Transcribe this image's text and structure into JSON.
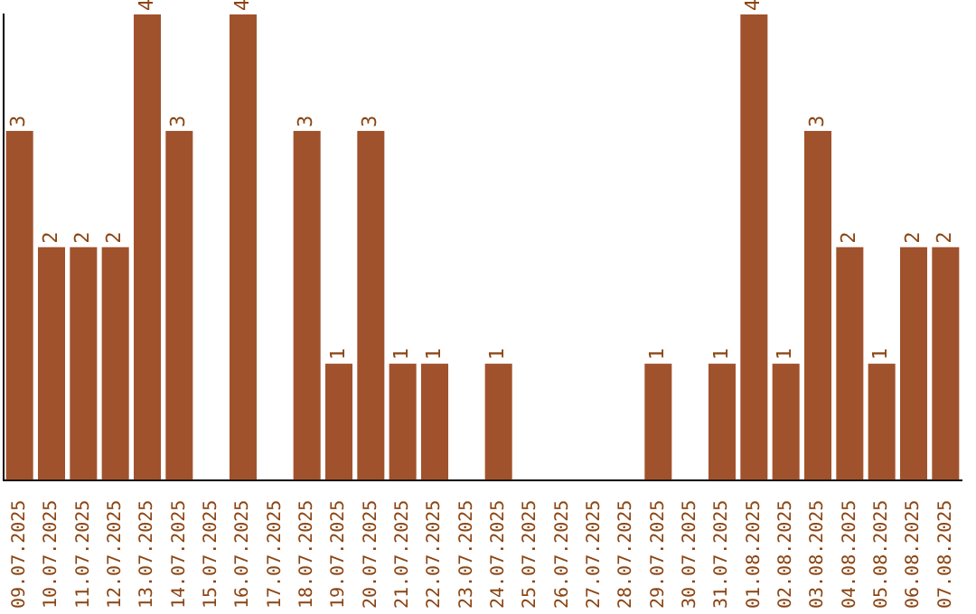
{
  "chart_data": {
    "type": "bar",
    "categories": [
      "09.07.2025",
      "10.07.2025",
      "11.07.2025",
      "12.07.2025",
      "13.07.2025",
      "14.07.2025",
      "15.07.2025",
      "16.07.2025",
      "17.07.2025",
      "18.07.2025",
      "19.07.2025",
      "20.07.2025",
      "21.07.2025",
      "22.07.2025",
      "23.07.2025",
      "24.07.2025",
      "25.07.2025",
      "26.07.2025",
      "27.07.2025",
      "28.07.2025",
      "29.07.2025",
      "30.07.2025",
      "31.07.2025",
      "01.08.2025",
      "02.08.2025",
      "03.08.2025",
      "04.08.2025",
      "05.08.2025",
      "06.08.2025",
      "07.08.2025"
    ],
    "values": [
      3,
      2,
      2,
      2,
      4,
      3,
      0,
      4,
      0,
      3,
      1,
      3,
      1,
      1,
      0,
      1,
      0,
      0,
      0,
      0,
      1,
      0,
      1,
      4,
      1,
      3,
      2,
      1,
      2,
      2
    ],
    "value_labels": [
      "3",
      "2",
      "2",
      "2",
      "4",
      "3",
      null,
      "4",
      null,
      "3",
      "1",
      "3",
      "1",
      "1",
      null,
      "1",
      null,
      null,
      null,
      null,
      "1",
      null,
      "1",
      "4",
      "1",
      "3",
      "2",
      "1",
      "2",
      "2"
    ],
    "color": "#a0522d",
    "grid": false,
    "legend": false
  }
}
